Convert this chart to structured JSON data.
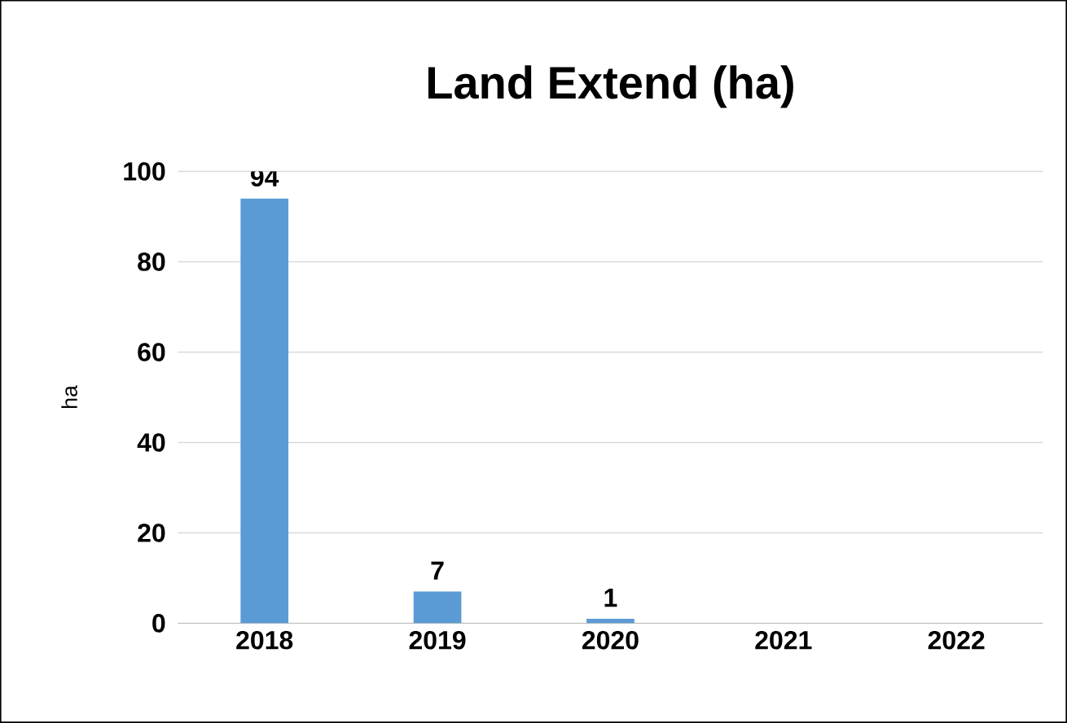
{
  "chart_data": {
    "type": "bar",
    "title": "Land Extend (ha)",
    "ylabel": "ha",
    "categories": [
      "2018",
      "2019",
      "2020",
      "2021",
      "2022"
    ],
    "values": [
      94,
      7,
      1,
      null,
      null
    ],
    "color": "#5b9bd5",
    "ylim": [
      0,
      100
    ],
    "yticks": [
      0,
      20,
      40,
      60,
      80,
      100
    ],
    "grid": "y",
    "data_labels": true
  }
}
